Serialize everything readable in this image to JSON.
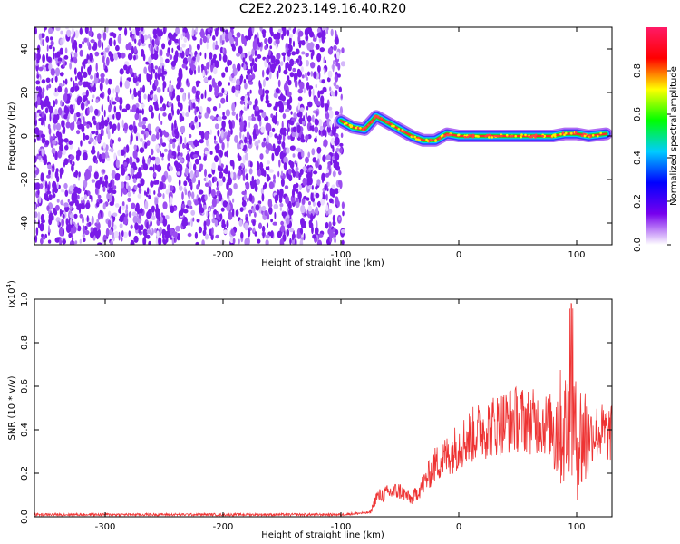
{
  "title": "C2E2.2023.149.16.40.R20",
  "colors": {
    "background": "#ffffff",
    "axis": "#000000",
    "snr_line": "#ee3333"
  },
  "chart_data": [
    {
      "type": "heatmap",
      "title": "C2E2.2023.149.16.40.R20",
      "xlabel": "Height of straight line (km)",
      "ylabel": "Frequency (Hz)",
      "xlim": [
        -360,
        130
      ],
      "ylim": [
        -50,
        50
      ],
      "xticks": [
        "-300",
        "-200",
        "-100",
        "0",
        "100"
      ],
      "yticks": [
        "-40",
        "-20",
        "0",
        "20",
        "40"
      ],
      "noise_region_x": [
        -360,
        -98
      ],
      "signal_trace": {
        "x": [
          -100,
          -90,
          -80,
          -70,
          -60,
          -50,
          -40,
          -30,
          -20,
          -10,
          0,
          10,
          20,
          30,
          40,
          50,
          60,
          70,
          80,
          90,
          100,
          110,
          125
        ],
        "y": [
          7,
          4,
          3,
          9,
          6,
          3,
          0,
          -2,
          -2,
          1,
          0,
          0,
          0,
          0,
          0,
          0,
          0,
          0,
          0,
          1,
          1,
          0,
          1
        ]
      },
      "colorbar": {
        "label": "Normalized spectral amplitude",
        "range": [
          0,
          1
        ],
        "ticks": [
          "0.0",
          "0.2",
          "0.4",
          "0.6",
          "0.8"
        ],
        "colormap": [
          "#ffffff",
          "#7700ee",
          "#0000ff",
          "#00ccff",
          "#00ff00",
          "#ffff00",
          "#ff0000",
          "#ff1a66"
        ]
      },
      "grid": false
    },
    {
      "type": "line",
      "xlabel": "Height of straight line (km)",
      "ylabel": "SNR (10 * v/v)",
      "yscale_label": "(x10",
      "yscale_exp": "4",
      "yscale_close": ")",
      "xlim": [
        -360,
        130
      ],
      "ylim": [
        0,
        1.0
      ],
      "xticks": [
        "-300",
        "-200",
        "-100",
        "0",
        "100"
      ],
      "yticks": [
        "0.0",
        "0.2",
        "0.4",
        "0.6",
        "0.8",
        "1.0"
      ],
      "series": [
        {
          "color": "#ee3333",
          "x": [
            -360,
            -300,
            -200,
            -100,
            -75,
            -70,
            -60,
            -50,
            -40,
            -30,
            -20,
            -10,
            0,
            10,
            20,
            30,
            40,
            50,
            60,
            70,
            80,
            90,
            95,
            100,
            110,
            120,
            130
          ],
          "y": [
            0.01,
            0.01,
            0.01,
            0.01,
            0.02,
            0.09,
            0.11,
            0.12,
            0.08,
            0.15,
            0.24,
            0.28,
            0.33,
            0.37,
            0.4,
            0.42,
            0.44,
            0.45,
            0.44,
            0.43,
            0.42,
            0.4,
            0.45,
            0.35,
            0.38,
            0.39,
            0.38
          ]
        }
      ],
      "grid": false
    }
  ]
}
